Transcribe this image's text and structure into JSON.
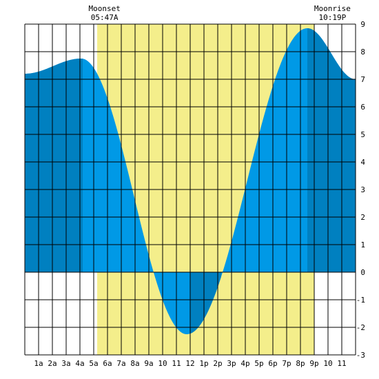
{
  "chart_data": {
    "type": "area",
    "title": "",
    "xlabel": "",
    "ylabel": "",
    "x_range_hours": [
      0,
      24
    ],
    "ylim": [
      -3,
      9
    ],
    "grid": true,
    "x_ticks": [
      {
        "hour": 1,
        "label": "1a"
      },
      {
        "hour": 2,
        "label": "2a"
      },
      {
        "hour": 3,
        "label": "3a"
      },
      {
        "hour": 4,
        "label": "4a"
      },
      {
        "hour": 5,
        "label": "5a"
      },
      {
        "hour": 6,
        "label": "6a"
      },
      {
        "hour": 7,
        "label": "7a"
      },
      {
        "hour": 8,
        "label": "8a"
      },
      {
        "hour": 9,
        "label": "9a"
      },
      {
        "hour": 10,
        "label": "10"
      },
      {
        "hour": 11,
        "label": "11"
      },
      {
        "hour": 12,
        "label": "12"
      },
      {
        "hour": 13,
        "label": "1p"
      },
      {
        "hour": 14,
        "label": "2p"
      },
      {
        "hour": 15,
        "label": "3p"
      },
      {
        "hour": 16,
        "label": "4p"
      },
      {
        "hour": 17,
        "label": "5p"
      },
      {
        "hour": 18,
        "label": "6p"
      },
      {
        "hour": 19,
        "label": "7p"
      },
      {
        "hour": 20,
        "label": "8p"
      },
      {
        "hour": 21,
        "label": "9p"
      },
      {
        "hour": 22,
        "label": "10"
      },
      {
        "hour": 23,
        "label": "11"
      }
    ],
    "y_ticks": [
      {
        "value": 9,
        "label": "9"
      },
      {
        "value": 8,
        "label": "8"
      },
      {
        "value": 7,
        "label": "7"
      },
      {
        "value": 6,
        "label": "6"
      },
      {
        "value": 5,
        "label": "5"
      },
      {
        "value": 4,
        "label": "4"
      },
      {
        "value": 3,
        "label": "3"
      },
      {
        "value": 2,
        "label": "2"
      },
      {
        "value": 1,
        "label": "1"
      },
      {
        "value": 0,
        "label": "0"
      },
      {
        "value": -1,
        "label": "-1"
      },
      {
        "value": -2,
        "label": "-2"
      },
      {
        "value": -3,
        "label": "-3"
      }
    ],
    "tide_curve": {
      "extrema": [
        {
          "hour": 0,
          "height": 7.2
        },
        {
          "hour": 4.1,
          "height": 7.75
        },
        {
          "hour": 11.75,
          "height": -2.25
        },
        {
          "hour": 20.5,
          "height": 8.85
        },
        {
          "hour": 24,
          "height": 7.0
        }
      ],
      "color": "#0099e6",
      "highlight_color": "#0080c0"
    },
    "dark_bands": [
      {
        "start_hour": 0,
        "end_hour": 4.2
      },
      {
        "start_hour": 12,
        "end_hour": 14.25
      },
      {
        "start_hour": 20.5,
        "end_hour": 24
      }
    ],
    "daylight": {
      "start_hour": 5.25,
      "end_hour": 21,
      "color": "#f4ee8b"
    },
    "annotations": [
      {
        "title": "Moonset",
        "time": "05:47A",
        "hour": 5.783
      },
      {
        "title": "Moonrise",
        "time": "10:19P",
        "hour": 22.317
      }
    ],
    "background_color": "#ffffff"
  }
}
